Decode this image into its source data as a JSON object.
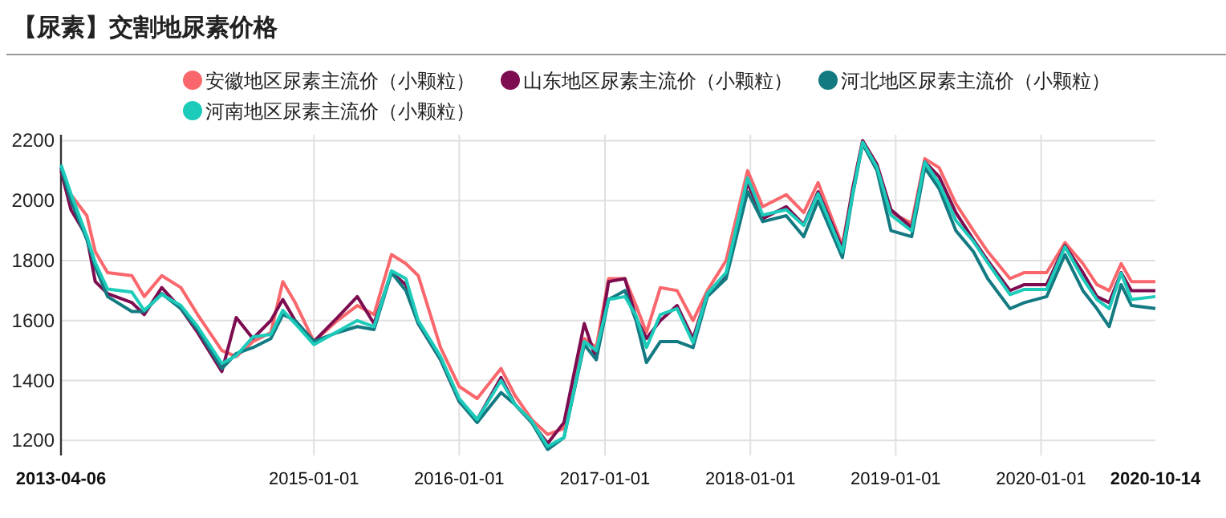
{
  "chart_data": {
    "type": "line",
    "title": "【尿素】交割地尿素价格",
    "x": [
      "2013-04-06",
      "2013-05-01",
      "2013-06-10",
      "2013-07-01",
      "2013-08-01",
      "2013-10-01",
      "2013-11-01",
      "2013-12-15",
      "2014-02-01",
      "2014-03-15",
      "2014-05-15",
      "2014-06-20",
      "2014-08-01",
      "2014-09-15",
      "2014-10-15",
      "2014-11-15",
      "2015-01-01",
      "2015-03-01",
      "2015-04-20",
      "2015-06-01",
      "2015-07-15",
      "2015-08-20",
      "2015-09-20",
      "2015-11-15",
      "2016-01-01",
      "2016-02-15",
      "2016-04-15",
      "2016-05-20",
      "2016-07-01",
      "2016-08-10",
      "2016-09-20",
      "2016-11-10",
      "2016-12-10",
      "2017-01-10",
      "2017-02-20",
      "2017-03-20",
      "2017-04-15",
      "2017-05-20",
      "2017-07-01",
      "2017-08-10",
      "2017-09-15",
      "2017-11-01",
      "2017-12-25",
      "2018-02-01",
      "2018-04-01",
      "2018-05-15",
      "2018-06-20",
      "2018-08-20",
      "2018-09-15",
      "2018-10-10",
      "2018-11-15",
      "2018-12-20",
      "2019-02-10",
      "2019-03-15",
      "2019-04-20",
      "2019-06-01",
      "2019-07-15",
      "2019-08-20",
      "2019-10-15",
      "2019-11-20",
      "2020-01-15",
      "2020-03-01",
      "2020-04-15",
      "2020-05-20",
      "2020-06-20",
      "2020-07-20",
      "2020-08-15",
      "2020-10-14"
    ],
    "series": [
      {
        "name": "安徽地区尿素主流价（小颗粒）",
        "color": "#f9676c",
        "values": [
          2110,
          2020,
          1950,
          1830,
          1760,
          1750,
          1680,
          1750,
          1710,
          1620,
          1500,
          1480,
          1530,
          1560,
          1730,
          1660,
          1530,
          1600,
          1650,
          1620,
          1820,
          1790,
          1750,
          1510,
          1380,
          1340,
          1440,
          1350,
          1270,
          1220,
          1240,
          1540,
          1510,
          1740,
          1740,
          1650,
          1560,
          1710,
          1700,
          1600,
          1700,
          1800,
          2100,
          1980,
          2020,
          1960,
          2060,
          1850,
          2040,
          2200,
          2120,
          1960,
          1925,
          2140,
          2110,
          1990,
          1900,
          1830,
          1740,
          1760,
          1760,
          1860,
          1790,
          1720,
          1700,
          1790,
          1730,
          1730
        ]
      },
      {
        "name": "山东地区尿素主流价（小颗粒）",
        "color": "#7d0c50",
        "values": [
          2100,
          1970,
          1880,
          1730,
          1690,
          1660,
          1620,
          1710,
          1640,
          1560,
          1430,
          1610,
          1540,
          1600,
          1670,
          1600,
          1530,
          1610,
          1680,
          1590,
          1760,
          1720,
          1590,
          1470,
          1330,
          1270,
          1410,
          1320,
          1260,
          1190,
          1260,
          1590,
          1470,
          1730,
          1740,
          1610,
          1540,
          1600,
          1650,
          1540,
          1690,
          1750,
          2060,
          1940,
          1980,
          1920,
          2030,
          1840,
          2040,
          2200,
          2120,
          1970,
          1910,
          2130,
          2080,
          1960,
          1870,
          1800,
          1700,
          1720,
          1720,
          1850,
          1760,
          1680,
          1660,
          1760,
          1700,
          1700
        ]
      },
      {
        "name": "河北地区尿素主流价（小颗粒）",
        "color": "#137a82",
        "values": [
          2110,
          2000,
          1870,
          1780,
          1680,
          1630,
          1630,
          1690,
          1640,
          1570,
          1440,
          1490,
          1510,
          1540,
          1620,
          1600,
          1530,
          1560,
          1580,
          1570,
          1760,
          1700,
          1590,
          1470,
          1330,
          1260,
          1360,
          1320,
          1260,
          1170,
          1210,
          1520,
          1470,
          1670,
          1700,
          1600,
          1460,
          1530,
          1530,
          1510,
          1680,
          1740,
          2030,
          1930,
          1950,
          1880,
          2000,
          1810,
          2020,
          2190,
          2100,
          1900,
          1880,
          2110,
          2040,
          1900,
          1830,
          1740,
          1640,
          1660,
          1680,
          1820,
          1700,
          1640,
          1580,
          1720,
          1650,
          1640
        ]
      },
      {
        "name": "河南地区尿素主流价（小颗粒）",
        "color": "#1ccbba",
        "values": [
          2120,
          2023,
          1881,
          1793,
          1705,
          1695,
          1634,
          1687,
          1650,
          1580,
          1457,
          1483,
          1545,
          1554,
          1634,
          1590,
          1520,
          1563,
          1600,
          1580,
          1766,
          1740,
          1600,
          1480,
          1340,
          1270,
          1400,
          1320,
          1265,
          1180,
          1210,
          1530,
          1500,
          1670,
          1680,
          1616,
          1510,
          1620,
          1640,
          1527,
          1690,
          1760,
          2076,
          1952,
          1970,
          1917,
          2023,
          1828,
          2023,
          2195,
          2111,
          1952,
          1899,
          2129,
          2058,
          1934,
          1864,
          1793,
          1687,
          1704,
          1704,
          1846,
          1740,
          1670,
          1640,
          1758,
          1670,
          1680
        ]
      }
    ],
    "xlim": [
      "2013-04-06",
      "2020-10-14"
    ],
    "xticks": [
      "2013-04-06",
      "2015-01-01",
      "2016-01-01",
      "2017-01-01",
      "2018-01-01",
      "2019-01-01",
      "2020-01-01",
      "2020-10-14"
    ],
    "ylim": [
      1150,
      2220
    ],
    "yticks": [
      1200,
      1400,
      1600,
      1800,
      2000,
      2200
    ],
    "grid": true,
    "legend": "top"
  }
}
